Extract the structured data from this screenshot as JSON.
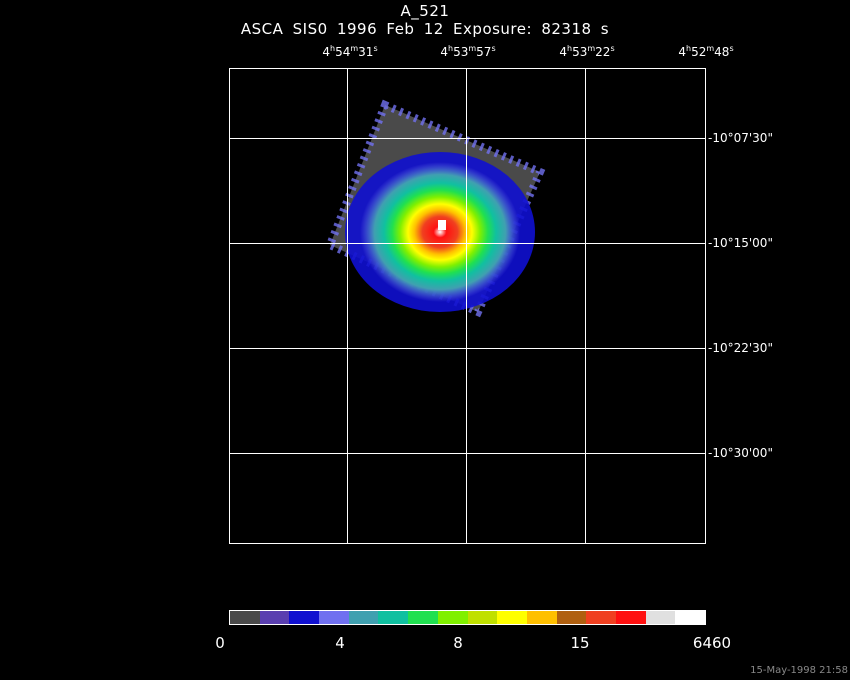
{
  "title": "A_521",
  "subtitle": "ASCA SIS0   1996 Feb 12    Exposure: 82318 s",
  "ra_ticks": [
    {
      "h": "4",
      "m": "54",
      "s": "31"
    },
    {
      "h": "4",
      "m": "53",
      "s": "57"
    },
    {
      "h": "4",
      "m": "53",
      "s": "22"
    },
    {
      "h": "4",
      "m": "52",
      "s": "48"
    }
  ],
  "dec_ticks": [
    "-10°07'30\"",
    "-10°15'00\"",
    "-10°22'30\"",
    "-10°30'00\""
  ],
  "colorbar": {
    "colors": [
      "#4a4a4a",
      "#5a3fb0",
      "#1010d0",
      "#7070f0",
      "#40a0b0",
      "#10c0a0",
      "#20e050",
      "#80f000",
      "#c0e000",
      "#ffff00",
      "#ffc000",
      "#b06010",
      "#f04020",
      "#ff1010",
      "#e0e0e0",
      "#ffffff"
    ],
    "labels": [
      "0",
      "4",
      "8",
      "15",
      "6460"
    ]
  },
  "timestamp": "15-May-1998 21:58"
}
